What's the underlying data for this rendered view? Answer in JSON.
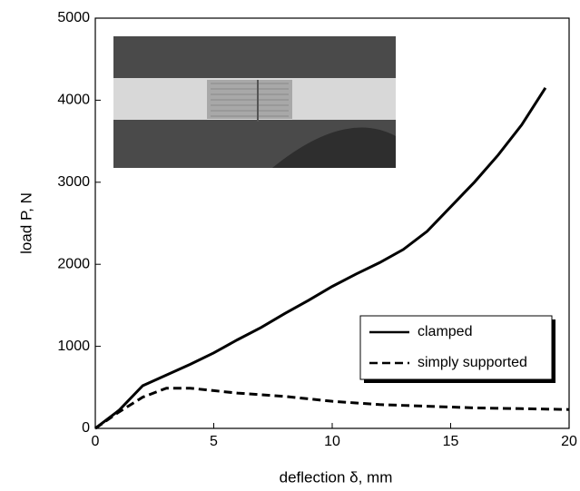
{
  "chart_data": {
    "type": "line",
    "xlabel": "deflection δ, mm",
    "ylabel": "load P, N",
    "xlim": [
      0,
      20
    ],
    "xticks": [
      0,
      5,
      10,
      15,
      20
    ],
    "ylim": [
      0,
      5000
    ],
    "yticks": [
      0,
      1000,
      2000,
      3000,
      4000,
      5000
    ],
    "legend": "lower right",
    "series": [
      {
        "name": "clamped",
        "color": "#000000",
        "line_style": "solid",
        "x": [
          0,
          1,
          2,
          3,
          4,
          5,
          6,
          7,
          8,
          9,
          10,
          11,
          12,
          13,
          14,
          15,
          16,
          17,
          18,
          19
        ],
        "values": [
          0,
          220,
          520,
          650,
          780,
          920,
          1080,
          1230,
          1400,
          1560,
          1730,
          1880,
          2020,
          2180,
          2400,
          2700,
          3000,
          3330,
          3700,
          4150
        ]
      },
      {
        "name": "simply supported",
        "color": "#000000",
        "line_style": "dashed",
        "x": [
          0,
          1,
          2,
          3,
          4,
          5,
          6,
          7,
          8,
          9,
          10,
          11,
          12,
          13,
          14,
          15,
          16,
          17,
          18,
          19,
          20
        ],
        "values": [
          0,
          200,
          380,
          490,
          490,
          460,
          430,
          410,
          390,
          360,
          330,
          310,
          290,
          280,
          270,
          260,
          250,
          245,
          240,
          235,
          230
        ]
      }
    ]
  }
}
